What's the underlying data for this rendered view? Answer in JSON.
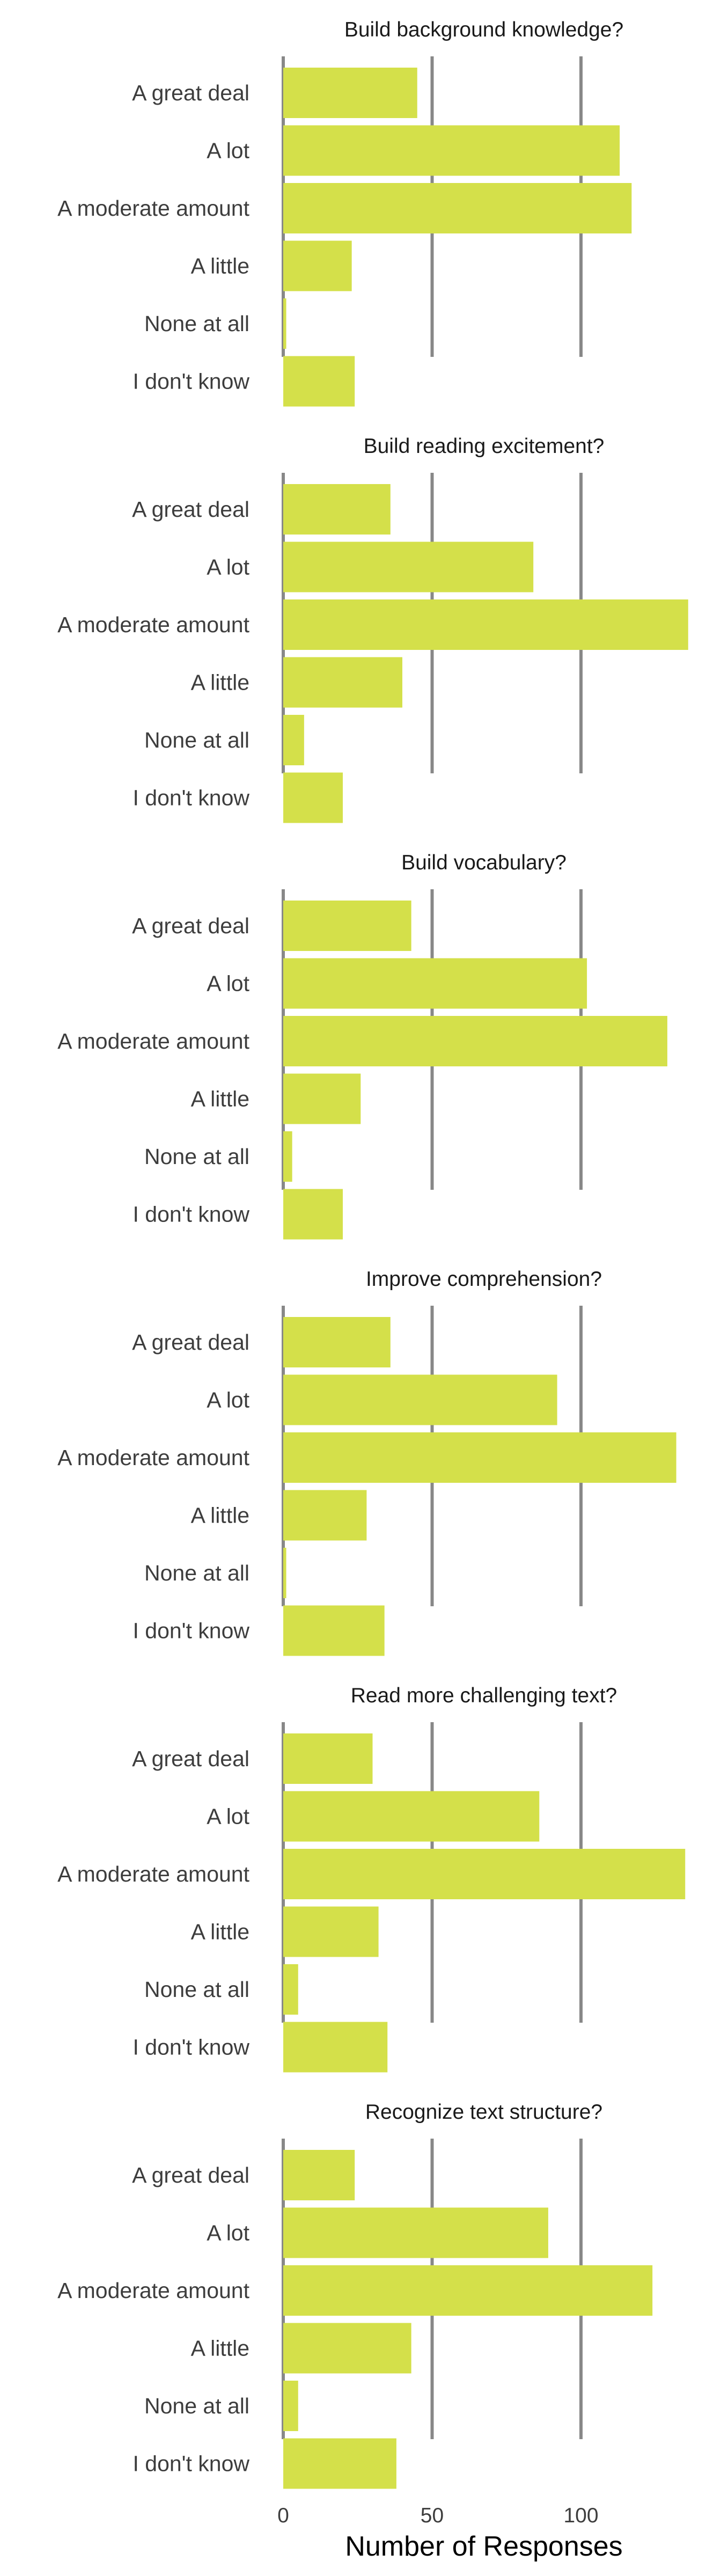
{
  "chart_data": {
    "type": "bar",
    "orientation": "horizontal",
    "xlabel": "Number of Responses",
    "ylabel": "",
    "xlim": [
      0,
      135
    ],
    "xticks": [
      0,
      50,
      100
    ],
    "grid": true,
    "colors": {
      "bar": "#d4e04a",
      "gridline": "#888888"
    },
    "categories": [
      "A great deal",
      "A lot",
      "A moderate amount",
      "A little",
      "None at all",
      "I don't know"
    ],
    "panels": [
      {
        "title": "Build background knowledge?",
        "values": [
          45,
          113,
          117,
          23,
          1,
          24
        ]
      },
      {
        "title": "Build reading excitement?",
        "values": [
          36,
          84,
          136,
          40,
          7,
          20
        ]
      },
      {
        "title": "Build vocabulary?",
        "values": [
          43,
          102,
          129,
          26,
          3,
          20
        ]
      },
      {
        "title": "Improve comprehension?",
        "values": [
          36,
          92,
          132,
          28,
          1,
          34
        ]
      },
      {
        "title": "Read more challenging text?",
        "values": [
          30,
          86,
          135,
          32,
          5,
          35
        ]
      },
      {
        "title": "Recognize text structure?",
        "values": [
          24,
          89,
          124,
          43,
          5,
          38
        ]
      }
    ]
  }
}
